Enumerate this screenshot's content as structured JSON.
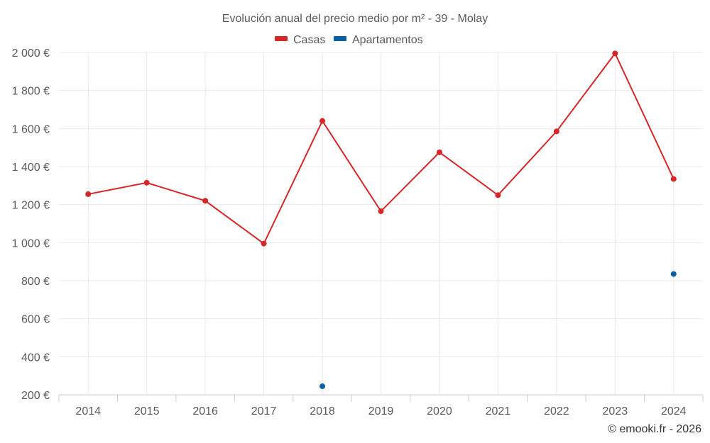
{
  "chart_data": {
    "type": "line",
    "title": "Evolución anual del precio medio por m² - 39 - Molay",
    "categories": [
      "2014",
      "2015",
      "2016",
      "2017",
      "2018",
      "2019",
      "2020",
      "2021",
      "2022",
      "2023",
      "2024"
    ],
    "series": [
      {
        "name": "Casas",
        "color": "#d62728",
        "values": [
          1255,
          1315,
          1220,
          995,
          1640,
          1165,
          1475,
          1250,
          1585,
          1995,
          1335
        ]
      },
      {
        "name": "Apartamentos",
        "color": "#0b5f9e",
        "values": [
          null,
          null,
          null,
          null,
          245,
          null,
          null,
          null,
          null,
          null,
          835
        ]
      }
    ],
    "yticks": [
      {
        "value": 200,
        "label": "200 €"
      },
      {
        "value": 400,
        "label": "400 €"
      },
      {
        "value": 600,
        "label": "600 €"
      },
      {
        "value": 800,
        "label": "800 €"
      },
      {
        "value": 1000,
        "label": "1 000 €"
      },
      {
        "value": 1200,
        "label": "1 200 €"
      },
      {
        "value": 1400,
        "label": "1 400 €"
      },
      {
        "value": 1600,
        "label": "1 600 €"
      },
      {
        "value": 1800,
        "label": "1 800 €"
      },
      {
        "value": 2000,
        "label": "2 000 €"
      }
    ],
    "ylim": [
      200,
      2000
    ],
    "grid": true,
    "legend_position": "top-center"
  },
  "credit": "© emooki.fr - 2026"
}
